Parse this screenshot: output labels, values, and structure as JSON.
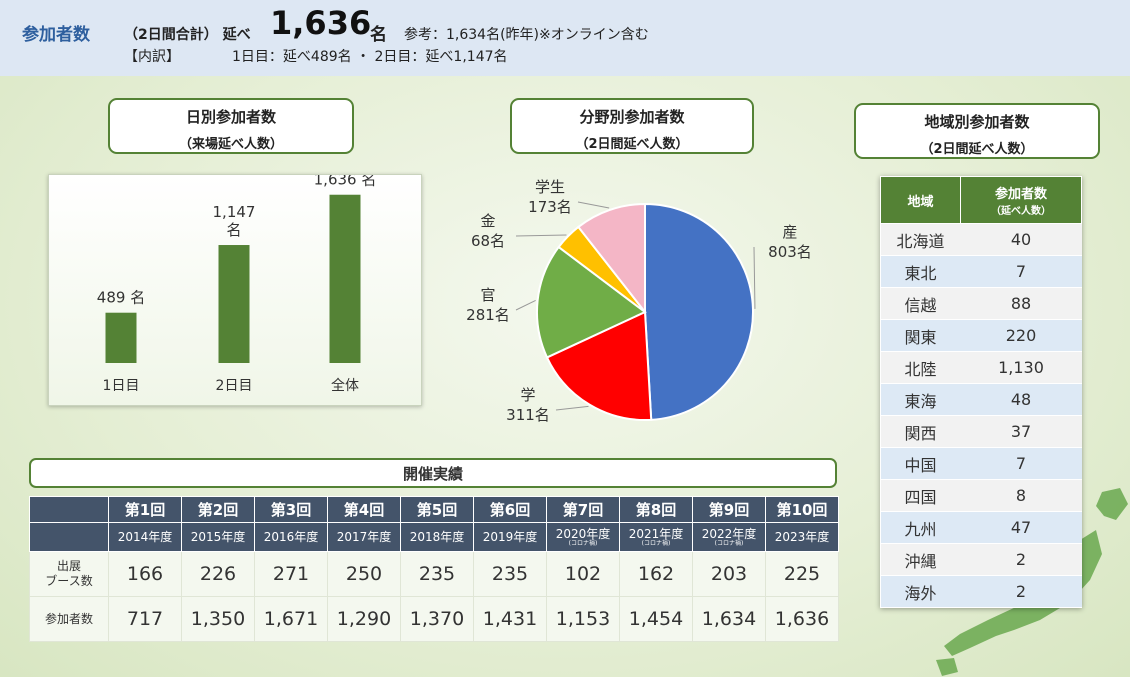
{
  "header": {
    "label": "参加者数",
    "total_prefix": "（2日間合計）  延べ",
    "total_value": "1,636",
    "total_unit": "名",
    "reference": "参考：1,634名(昨年)※オンライン含む",
    "breakdown_label": "【内訳】",
    "breakdown_text": "1日目：延べ489名 ・ 2日目：延べ1,147名"
  },
  "boxes": {
    "daily": {
      "title": "日別参加者数",
      "subtitle": "（来場延べ人数）"
    },
    "field": {
      "title": "分野別参加者数",
      "subtitle": "（2日間延べ人数）"
    },
    "region": {
      "title": "地域別参加者数",
      "subtitle": "（2日間延べ人数）"
    }
  },
  "chart_data": [
    {
      "type": "bar",
      "categories": [
        "1日目",
        "2日目",
        "全体"
      ],
      "values": [
        489,
        1147,
        1636
      ],
      "data_labels": [
        "489 名",
        "1,147 名",
        "1,636 名"
      ],
      "ylim": [
        0,
        1750
      ],
      "color": "#548235"
    },
    {
      "type": "pie",
      "categories": [
        "産",
        "学",
        "官",
        "金",
        "学生"
      ],
      "values": [
        803,
        311,
        281,
        68,
        173
      ],
      "value_labels": [
        "803名",
        "311名",
        "281名",
        "68名",
        "173名"
      ],
      "colors": [
        "#4472c4",
        "#ff0000",
        "#70ad47",
        "#ffc000",
        "#f4b6c6"
      ]
    }
  ],
  "region_table": {
    "headers": [
      "地域",
      "参加者数",
      "（延べ人数）"
    ],
    "rows": [
      [
        "北海道",
        "40"
      ],
      [
        "東北",
        "7"
      ],
      [
        "信越",
        "88"
      ],
      [
        "関東",
        "220"
      ],
      [
        "北陸",
        "1,130"
      ],
      [
        "東海",
        "48"
      ],
      [
        "関西",
        "37"
      ],
      [
        "中国",
        "7"
      ],
      [
        "四国",
        "8"
      ],
      [
        "九州",
        "47"
      ],
      [
        "沖縄",
        "2"
      ],
      [
        "海外",
        "2"
      ]
    ]
  },
  "history": {
    "title": "開催実績",
    "rounds": [
      "第1回",
      "第2回",
      "第3回",
      "第4回",
      "第5回",
      "第6回",
      "第7回",
      "第8回",
      "第9回",
      "第10回"
    ],
    "years": [
      "2014年度",
      "2015年度",
      "2016年度",
      "2017年度",
      "2018年度",
      "2019年度",
      "2020年度",
      "2021年度",
      "2022年度",
      "2023年度"
    ],
    "year_notes": [
      "",
      "",
      "",
      "",
      "",
      "",
      "(コロナ禍)",
      "(コロナ禍)",
      "(コロナ禍)",
      ""
    ],
    "booth_label_1": "出展",
    "booth_label_2": "ブース数",
    "booth_values": [
      "166",
      "226",
      "271",
      "250",
      "235",
      "235",
      "102",
      "162",
      "203",
      "225"
    ],
    "participants_label": "参加者数",
    "participant_values": [
      "717",
      "1,350",
      "1,671",
      "1,290",
      "1,370",
      "1,431",
      "1,153",
      "1,454",
      "1,634",
      "1,636"
    ]
  },
  "colors": {
    "accent_green": "#548235",
    "header_navy": "#44546a",
    "top_blue": "#2e5f9e"
  }
}
